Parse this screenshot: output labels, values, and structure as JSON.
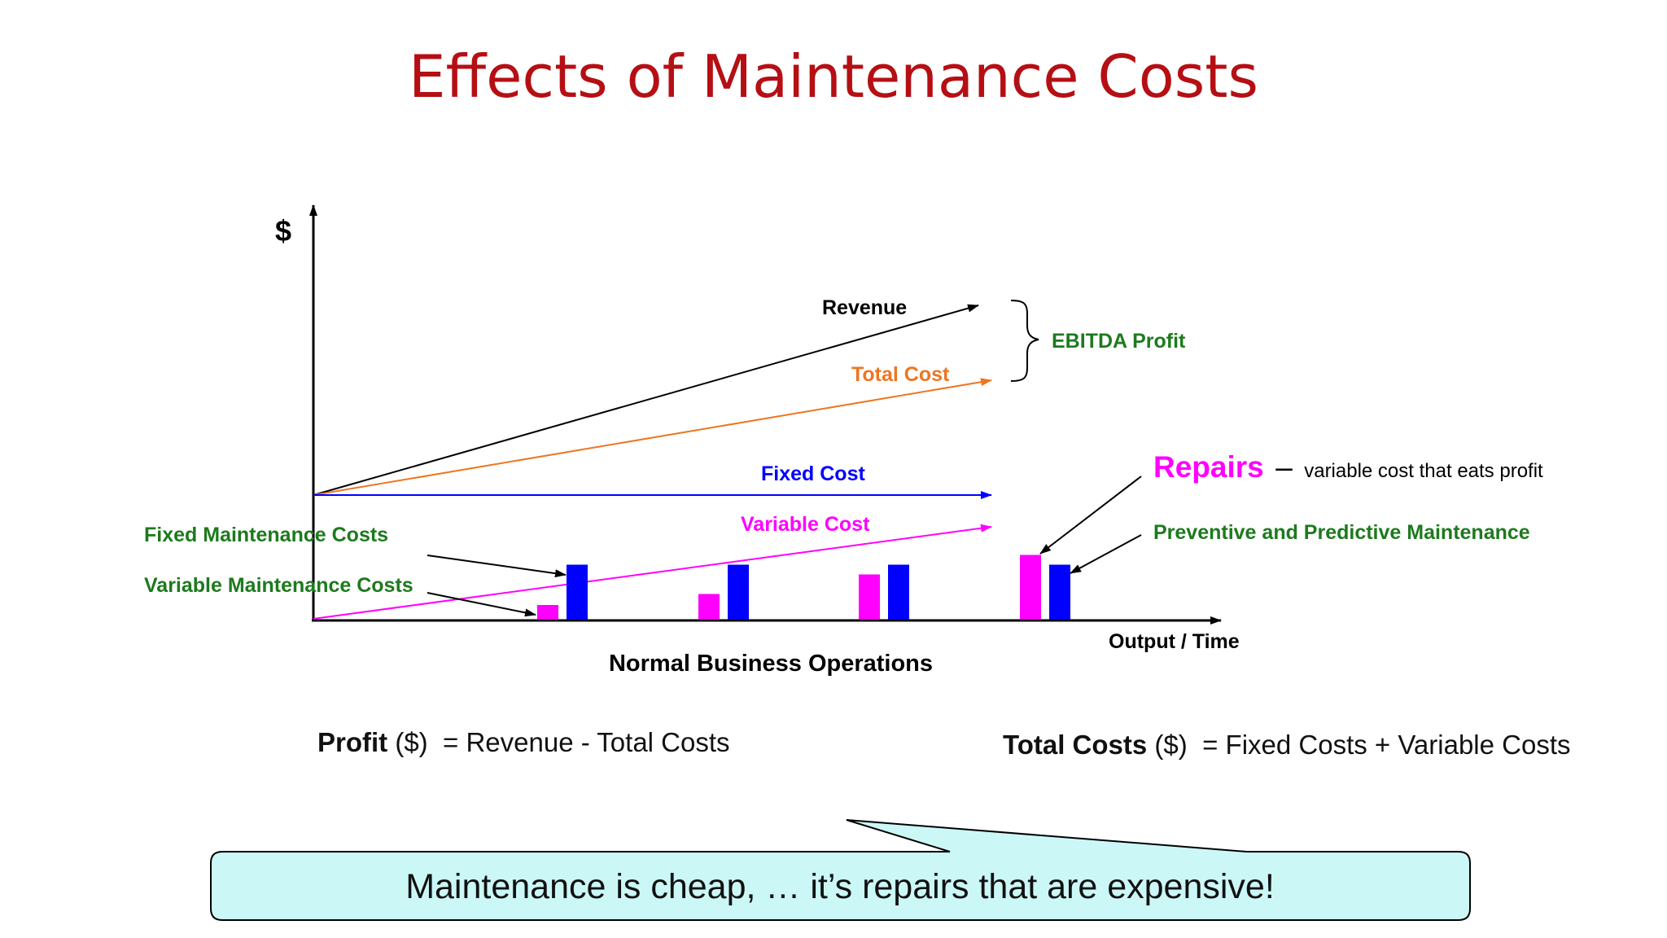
{
  "slide": {
    "title": "Effects of Maintenance Costs"
  },
  "chart_data": {
    "type": "line",
    "y_axis_label": "$",
    "x_axis_label": "Output / Time",
    "caption": "Normal Business Operations",
    "series_labels": {
      "revenue": "Revenue",
      "total_cost": "Total Cost",
      "fixed_cost": "Fixed Cost",
      "variable_cost": "Variable Cost"
    },
    "profit_brace_label": "EBITDA Profit",
    "annotations": {
      "fixed_maintenance": "Fixed Maintenance Costs",
      "variable_maintenance": "Variable Maintenance Costs",
      "repairs_title": "Repairs",
      "repairs_dash": "–",
      "repairs_desc": "variable cost that eats profit",
      "preventive": "Preventive and Predictive Maintenance"
    },
    "bar_groups": [
      {
        "variable": 0.12,
        "fixed": 0.45
      },
      {
        "variable": 0.21,
        "fixed": 0.45
      },
      {
        "variable": 0.37,
        "fixed": 0.45
      },
      {
        "variable": 0.53,
        "fixed": 0.45
      }
    ],
    "colors": {
      "revenue": "#000000",
      "total_cost": "#ed7622",
      "fixed_cost": "#0000ff",
      "variable_cost": "#ff00ff",
      "labels_green": "#1d7a1d",
      "repairs": "#ff00ff"
    }
  },
  "formulas": {
    "profit": {
      "term": "Profit",
      "unit": "($)",
      "rhs": "= Revenue - Total Costs"
    },
    "total_costs": {
      "term": "Total Costs",
      "unit": "($)",
      "rhs": "= Fixed Costs + Variable Costs"
    }
  },
  "callout": {
    "text": "Maintenance is cheap, … it’s repairs that are expensive!",
    "fill": "#ccf7f7"
  }
}
